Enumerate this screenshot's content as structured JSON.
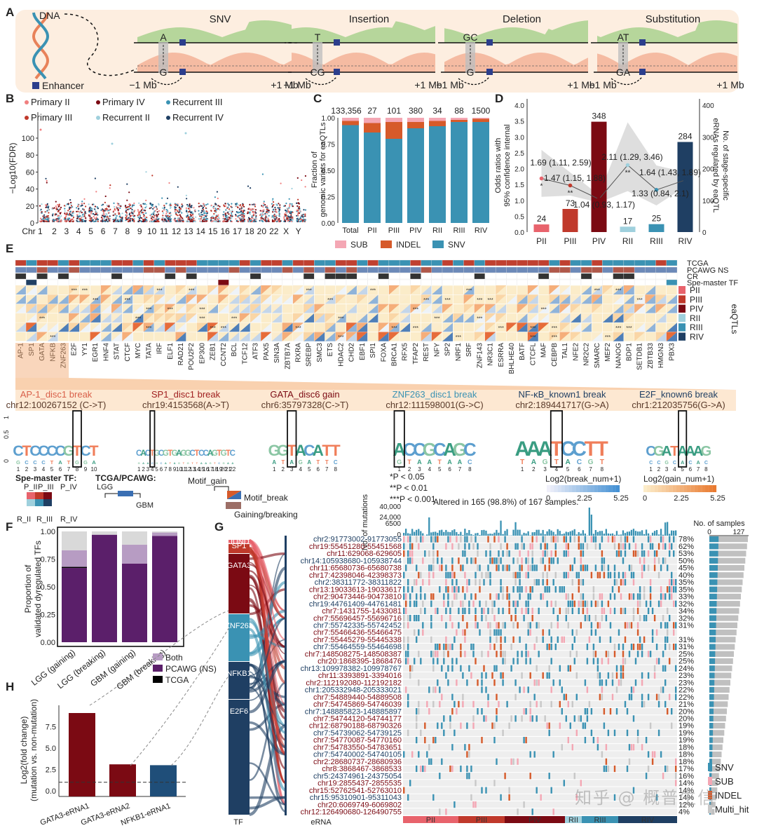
{
  "panels": {
    "A": "A",
    "B": "B",
    "C": "C",
    "D": "D",
    "E": "E",
    "F": "F",
    "G": "G",
    "H": "H"
  },
  "colors": {
    "green": "#a9d18e",
    "salmon": "#f4b59b",
    "teal": "#3a92b3",
    "navy": "#1f3f63",
    "darkred": "#7b0a13",
    "red": "#c0392b",
    "pink": "#f1a8b0",
    "orange": "#d65a2a",
    "purple": "#5b1f6a",
    "lightpurple": "#b79cc3",
    "gray": "#cfcfcf"
  },
  "A": {
    "dna_label": "DNA",
    "enhancer_label": "Enhancer",
    "items": [
      {
        "title": "SNV",
        "top": "A",
        "bottom": "G"
      },
      {
        "title": "Insertion",
        "top": "T",
        "bottom": "CG"
      },
      {
        "title": "Deletion",
        "top": "GC",
        "bottom": "G"
      },
      {
        "title": "Substitution",
        "top": "AT",
        "bottom": "GA"
      }
    ],
    "left_dist": "−1 Mb",
    "right_dist": "+1 Mb"
  },
  "B": {
    "ylabel": "−Log10(FDR)",
    "yticks": [
      "0",
      "20",
      "40",
      "60",
      "80",
      "100"
    ],
    "legend": [
      {
        "label": "Primary II",
        "color": "#f08080"
      },
      {
        "label": "Primary IV",
        "color": "#7b0a13"
      },
      {
        "label": "Recurrent III",
        "color": "#3a92b3"
      },
      {
        "label": "Primary III",
        "color": "#c0392b"
      },
      {
        "label": "Recurrent II",
        "color": "#9fd0dd"
      },
      {
        "label": "Recurrent IV",
        "color": "#1f3f63"
      }
    ],
    "chr_labels": [
      "Chr 1",
      "2",
      "3",
      "4",
      "5",
      "6",
      "7",
      "8",
      "9",
      "10",
      "11",
      "12",
      "13",
      "14",
      "15",
      "16",
      "17",
      "18",
      "20",
      "22",
      "X",
      "Y"
    ]
  },
  "C": {
    "ylabel": "Fraction of genomic variats for eaQTLs",
    "yticks": [
      "0.00",
      "0.25",
      "0.50",
      "0.75",
      "1.00"
    ],
    "chart_data": {
      "type": "bar",
      "categories": [
        "Total",
        "PII",
        "PIII",
        "PIV",
        "RII",
        "RIII",
        "RIV"
      ],
      "top_labels": [
        "133,356",
        "27",
        "101",
        "380",
        "34",
        "88",
        "1500"
      ],
      "series": [
        {
          "name": "SNV",
          "values": [
            0.93,
            0.86,
            0.8,
            0.9,
            0.92,
            0.96,
            0.96
          ]
        },
        {
          "name": "INDEL",
          "values": [
            0.04,
            0.09,
            0.16,
            0.06,
            0.05,
            0.02,
            0.03
          ]
        },
        {
          "name": "SUB",
          "values": [
            0.03,
            0.05,
            0.04,
            0.04,
            0.03,
            0.02,
            0.01
          ]
        }
      ],
      "ylim": [
        0,
        1
      ]
    },
    "legend": [
      "SUB",
      "INDEL",
      "SNV"
    ]
  },
  "D": {
    "ylabel": "Odds ratios with 95% confidence interval",
    "y2label": "No. of stage-specific eRNAs regulated by eaQTL",
    "yticks": [
      "0.0",
      "0.5",
      "1.0",
      "1.5",
      "2.0",
      "2.5",
      "3.0",
      "3.5",
      "4.0"
    ],
    "y2ticks": [
      "0",
      "100",
      "200",
      "300",
      "400"
    ],
    "chart_data": {
      "type": "bar",
      "categories": [
        "PII",
        "PIII",
        "PIV",
        "RII",
        "RIII",
        "RIV"
      ],
      "counts": [
        24,
        73,
        348,
        17,
        25,
        284
      ],
      "odds": [
        1.69,
        1.47,
        1.04,
        2.11,
        1.33,
        1.64
      ],
      "odds_labels": [
        "1.69 (1.11, 2.59)",
        "1.47 (1.15, 1.88)",
        "1.04 (0.93, 1.17)",
        "2.11 (1.29, 3.46)",
        "1.33 (0.84, 2.1)",
        "1.64 (1.43, 1.89)"
      ],
      "ci_low": [
        1.11,
        1.15,
        0.93,
        1.29,
        0.84,
        1.43
      ],
      "ci_high": [
        2.59,
        1.88,
        1.17,
        3.46,
        2.1,
        1.89
      ],
      "sig": [
        "*",
        "**",
        "",
        "**",
        "",
        ""
      ],
      "ylim": [
        0,
        4.2
      ],
      "y2lim": [
        0,
        420
      ]
    }
  },
  "E": {
    "tfs": [
      "AP-1",
      "SP1",
      "GATA",
      "NFKB",
      "ZNF263",
      "E2F",
      "YY1",
      "EGR1",
      "HNF4",
      "STAT",
      "CTCF",
      "MYC",
      "TATA",
      "IRF",
      "ELF1",
      "RAD21",
      "POU2F2",
      "EP300",
      "ZEB1",
      "CCNT2",
      "BCL",
      "TCF12",
      "ATF3",
      "PAX5",
      "SIN3A",
      "ZBTB7A",
      "RXRA",
      "SREBP",
      "SMC3",
      "ETS",
      "HDAC2",
      "CHD2",
      "EBF1",
      "SPI1",
      "FOXA",
      "BRCA1",
      "RFX5",
      "TFAP2",
      "REST",
      "NFY",
      "SP2",
      "NRF1",
      "SRF",
      "ZNF143",
      "NR3C1",
      "ESRRA",
      "BHLHE40",
      "BATF",
      "CTCFL",
      "MAF",
      "CEBPB",
      "TAL1",
      "NFE2",
      "NR2C2",
      "SMARC",
      "MEF2",
      "NANOG",
      "BDP1",
      "SETDB1",
      "ZBTB33",
      "HMGN3",
      "PBX3"
    ],
    "track_labels": [
      "TCGA",
      "PCAWG NS",
      "CR",
      "Spe-master TF"
    ],
    "row_labels": [
      "PII",
      "PIII",
      "PIV",
      "RII",
      "RIII",
      "RIV"
    ],
    "eaqtl_label": "eaQTLs",
    "motifs": [
      {
        "title": "AP-1_disc1 break",
        "pos": "chr12:100267152 (C->T)",
        "color": "#d9604a"
      },
      {
        "title": "SP1_disc1 break",
        "pos": "chr19:4153568(A->T)",
        "color": "#a02020"
      },
      {
        "title": "GATA_disc6 gain",
        "pos": "chr6:35797328(C->T)",
        "color": "#7b0a13"
      },
      {
        "title": "ZNF263_disc1 break",
        "pos": "chr12:111598001(G->C)",
        "color": "#3a92b3"
      },
      {
        "title": "NF-κB_known1 break",
        "pos": "chr2:189441717(G->A)",
        "color": "#1f3f63"
      },
      {
        "title": "E2F_known6 break",
        "pos": "chr1:212035756(G->A)",
        "color": "#1f3f63"
      }
    ],
    "logo_y": [
      "0",
      "0.5",
      "1"
    ],
    "legend": {
      "spe_master": "Spe-master TF:",
      "spe_labels": [
        "P_II",
        "P_III",
        "P_IV",
        "R_II",
        "R_III",
        "R_IV"
      ],
      "tcga": "TCGA/PCAWG:",
      "lgg": "LGG",
      "gbm": "GBM",
      "motif_gain": "Motif_gain",
      "motif_break": "Motif_break",
      "gaining_breaking": "Gaining/breaking",
      "p1": "*P < 0.05",
      "p2": "**P < 0.01",
      "p3": "***P < 0.001",
      "break_title": "Log2(break_num+1)",
      "gain_title": "Log2(gain_num+1)",
      "break_ticks": [
        "0",
        "2.25",
        "5.25"
      ],
      "gain_ticks": [
        "0",
        "2.25",
        "5.25"
      ]
    }
  },
  "F": {
    "ylabel": "Proportion of validated dyregulated TFs",
    "yticks": [
      "0.00",
      "0.25",
      "0.50",
      "0.75",
      "1.00"
    ],
    "chart_data": {
      "type": "bar",
      "categories": [
        "LGG (gaining)",
        "LGG (breaking)",
        "GBM (gaining)",
        "GBM (breaking)"
      ],
      "series": [
        {
          "name": "PCAWG (NS)",
          "values": [
            0.67,
            0.97,
            0.71,
            0.96
          ]
        },
        {
          "name": "TCGA",
          "values": [
            0.01,
            0.0,
            0.0,
            0.0
          ]
        },
        {
          "name": "Both",
          "values": [
            0.15,
            0.0,
            0.17,
            0.03
          ]
        },
        {
          "name": "None",
          "values": [
            0.17,
            0.03,
            0.12,
            0.01
          ]
        }
      ],
      "ylim": [
        0,
        1
      ]
    },
    "legend": [
      "Both",
      "PCAWG (NS)",
      "TCGA"
    ]
  },
  "G": {
    "altered": "Altered in 165 (98.8%) of 167 samples.",
    "nmut_label": "No. of mutations",
    "nmut_ticks": [
      "40,000",
      "24,000",
      "6500",
      "0"
    ],
    "nsamp_label": "No. of samples",
    "nsamp_ticks": [
      "0",
      "127"
    ],
    "tf_label": "TF",
    "erna_label": "eRNA",
    "tfs": [
      "JUND",
      "SP1",
      "GATA3",
      "ZNF263",
      "NFKB1",
      "E2F6"
    ],
    "enhancers": [
      "chr2:91773002-91773055",
      "chr19:55451280-55451568",
      "chr11:629068-629605",
      "chr14:105938680-105938744",
      "chr11:65680736-65680738",
      "chr17:42398046-42398373",
      "chr2:38311772-38311822",
      "chr13:19033613-19033617",
      "chr2:90473446-90473810",
      "chr19:44761409-44761481",
      "chr7:1431755-1433081",
      "chr7:55696457-55696716",
      "chr7:55742335-55742452",
      "chr7:55466436-55466475",
      "chr7:55445279-55445338",
      "chr7:55464559-55464698",
      "chr7:148508275-148508387",
      "chr20:1868395-1868476",
      "chr13:109978382-109978767",
      "chr11:3393891-3394016",
      "chr2:112192080-112192182",
      "chr1:205332948-205333021",
      "chr7:54889440-54889508",
      "chr7:54745869-54746039",
      "chr7:148885823-148885897",
      "chr7:54744120-54744177",
      "chr12:68790188-68790326",
      "chr7:54739062-54739125",
      "chr7:54770087-54770160",
      "chr7:54783550-54783651",
      "chr7:54740002-54740105",
      "chr2:28680737-28680936",
      "chr8:3868467-3868533",
      "chr5:24374961-24375054",
      "chr19:2855437-2855535",
      "chr15:52762541-52763010",
      "chr15:95310901-95311043",
      "chr20:6069749-6069802",
      "chr12:126490680-126490755"
    ],
    "percents": [
      "78%",
      "62%",
      "53%",
      "50%",
      "45%",
      "40%",
      "35%",
      "35%",
      "33%",
      "32%",
      "34%",
      "32%",
      "31%",
      "",
      "31%",
      "31%",
      "25%",
      "25%",
      "24%",
      "23%",
      "23%",
      "22%",
      "22%",
      "21%",
      "20%",
      "20%",
      "19%",
      "19%",
      "19%",
      "18%",
      "18%",
      "18%",
      "17%",
      "16%",
      "14%",
      "14%",
      "14%",
      "12%",
      "4%"
    ],
    "groups": [
      "PII",
      "PIII",
      "PIV",
      "RII",
      "RIII",
      "RIV"
    ],
    "legend": [
      "SNV",
      "SUB",
      "INDEL",
      "Multi_hit"
    ]
  },
  "H": {
    "ylabel": "Log2(fold change) (mutation vs. non-mutation)",
    "yticks": [
      "0.0",
      "2.5",
      "5.0",
      "7.5"
    ],
    "chart_data": {
      "type": "bar",
      "categories": [
        "GATA3-eRNA1",
        "GATA3-eRNA2",
        "NFKB1-eRNA1"
      ],
      "values": [
        9.1,
        3.1,
        3.0
      ],
      "threshold": 1,
      "ylim": [
        0,
        10
      ]
    }
  },
  "watermark": "知乎 @ 概普生信"
}
